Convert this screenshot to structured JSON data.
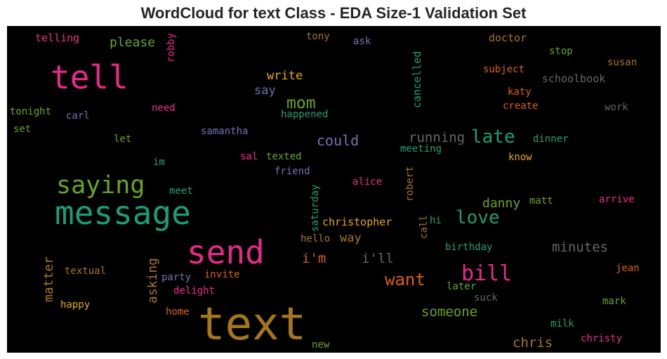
{
  "title": "WordCloud for text Class - EDA Size-1 Validation Set",
  "palette": {
    "pink": "#e7298a",
    "green": "#66a61e",
    "teal": "#1b9e77",
    "orange": "#d95f02",
    "purple": "#7570b3",
    "gold": "#e6ab02",
    "brown": "#a6761d",
    "gray": "#666666"
  },
  "chart_data": {
    "type": "wordcloud",
    "background": "#000000",
    "words": [
      {
        "text": "text",
        "color": "#a6761d"
      },
      {
        "text": "message",
        "color": "#1b9e77"
      },
      {
        "text": "send",
        "color": "#e7298a"
      },
      {
        "text": "tell",
        "color": "#e7298a"
      },
      {
        "text": "saying",
        "color": "#66a61e"
      },
      {
        "text": "bill",
        "color": "#e7298a"
      },
      {
        "text": "love",
        "color": "#1b9e77"
      },
      {
        "text": "late",
        "color": "#1b9e77"
      },
      {
        "text": "want",
        "color": "#d95f02"
      },
      {
        "text": "mom",
        "color": "#66a61e"
      },
      {
        "text": "could",
        "color": "#7570b3"
      },
      {
        "text": "running",
        "color": "#666666"
      },
      {
        "text": "minutes",
        "color": "#666666"
      },
      {
        "text": "someone",
        "color": "#66a61e"
      },
      {
        "text": "i'll",
        "color": "#666666"
      },
      {
        "text": "i'm",
        "color": "#d95f02"
      },
      {
        "text": "chris",
        "color": "#a6761d"
      },
      {
        "text": "danny",
        "color": "#66a61e"
      },
      {
        "text": "please",
        "color": "#66a61e"
      },
      {
        "text": "write",
        "color": "#e6ab02"
      },
      {
        "text": "say",
        "color": "#7570b3"
      },
      {
        "text": "asking",
        "color": "#a6761d"
      },
      {
        "text": "matter",
        "color": "#a6761d"
      },
      {
        "text": "way",
        "color": "#a6761d"
      },
      {
        "text": "christopher",
        "color": "#e6ab02"
      },
      {
        "text": "telling",
        "color": "#e7298a"
      },
      {
        "text": "tony",
        "color": "#a6761d"
      },
      {
        "text": "ask",
        "color": "#7570b3"
      },
      {
        "text": "doctor",
        "color": "#a6761d"
      },
      {
        "text": "stop",
        "color": "#66a61e"
      },
      {
        "text": "susan",
        "color": "#a6761d"
      },
      {
        "text": "subject",
        "color": "#d95f02"
      },
      {
        "text": "schoolbook",
        "color": "#666666"
      },
      {
        "text": "robby",
        "color": "#e7298a"
      },
      {
        "text": "cancelled",
        "color": "#1b9e77"
      },
      {
        "text": "katy",
        "color": "#d95f02"
      },
      {
        "text": "create",
        "color": "#d95f02"
      },
      {
        "text": "work",
        "color": "#666666"
      },
      {
        "text": "tonight",
        "color": "#66a61e"
      },
      {
        "text": "carl",
        "color": "#7570b3"
      },
      {
        "text": "need",
        "color": "#e7298a"
      },
      {
        "text": "happened",
        "color": "#1b9e77"
      },
      {
        "text": "set",
        "color": "#66a61e"
      },
      {
        "text": "let",
        "color": "#66a61e"
      },
      {
        "text": "samantha",
        "color": "#7570b3"
      },
      {
        "text": "dinner",
        "color": "#1b9e77"
      },
      {
        "text": "meeting",
        "color": "#1b9e77"
      },
      {
        "text": "know",
        "color": "#e6ab02"
      },
      {
        "text": "im",
        "color": "#1b9e77"
      },
      {
        "text": "sal",
        "color": "#e7298a"
      },
      {
        "text": "texted",
        "color": "#66a61e"
      },
      {
        "text": "friend",
        "color": "#7570b3"
      },
      {
        "text": "alice",
        "color": "#e7298a"
      },
      {
        "text": "robert",
        "color": "#a6761d"
      },
      {
        "text": "meet",
        "color": "#1b9e77"
      },
      {
        "text": "saturday",
        "color": "#1b9e77"
      },
      {
        "text": "matt",
        "color": "#66a61e"
      },
      {
        "text": "arrive",
        "color": "#e7298a"
      },
      {
        "text": "call",
        "color": "#a6761d"
      },
      {
        "text": "hi",
        "color": "#1b9e77"
      },
      {
        "text": "hello",
        "color": "#a6761d"
      },
      {
        "text": "birthday",
        "color": "#1b9e77"
      },
      {
        "text": "textual",
        "color": "#a6761d"
      },
      {
        "text": "party",
        "color": "#7570b3"
      },
      {
        "text": "invite",
        "color": "#d95f02"
      },
      {
        "text": "delight",
        "color": "#e7298a"
      },
      {
        "text": "jean",
        "color": "#d95f02"
      },
      {
        "text": "later",
        "color": "#66a61e"
      },
      {
        "text": "suck",
        "color": "#666666"
      },
      {
        "text": "happy",
        "color": "#e6ab02"
      },
      {
        "text": "home",
        "color": "#d95f02"
      },
      {
        "text": "mark",
        "color": "#66a61e"
      },
      {
        "text": "milk",
        "color": "#1b9e77"
      },
      {
        "text": "christy",
        "color": "#e7298a"
      },
      {
        "text": "new",
        "color": "#66a61e"
      }
    ]
  }
}
